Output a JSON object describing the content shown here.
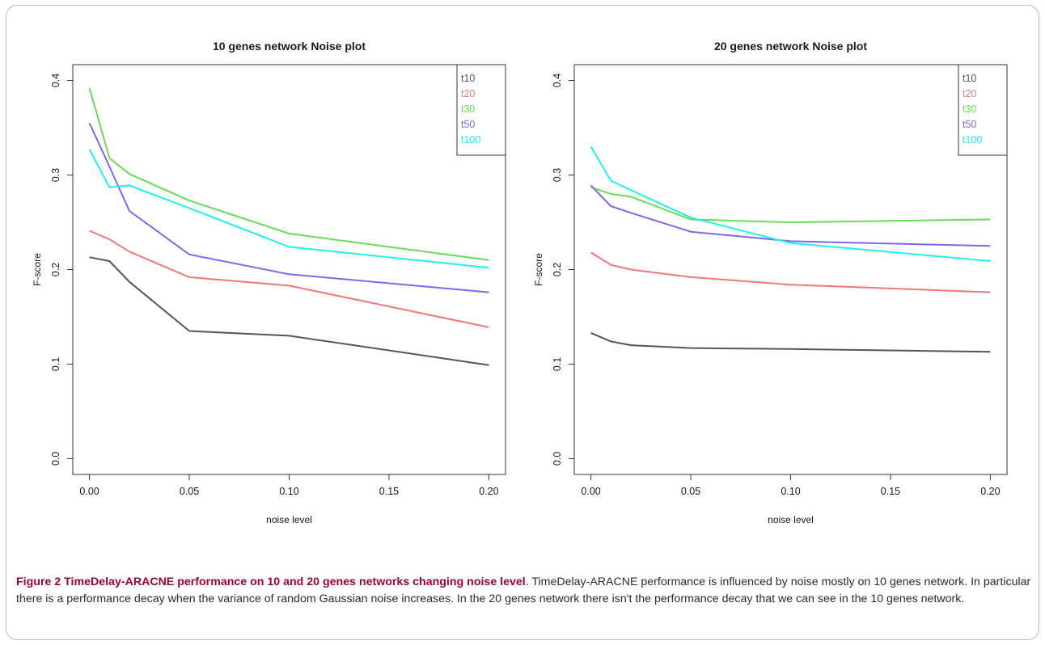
{
  "caption": {
    "label": "Figure 2",
    "title": "TimeDelay-ARACNE performance on 10 and 20 genes networks changing noise level",
    "text": ". TimeDelay-ARACNE performance is influenced by noise mostly on 10 genes network. In particular there is a performance decay when the variance of random Gaussian noise increases. In the 20 genes network there isn't the performance decay that we can see in the 10 genes network."
  },
  "chart_data": [
    {
      "type": "line",
      "title": "10 genes network Noise plot",
      "xlabel": "noise level",
      "ylabel": "F-score",
      "xlim": [
        0,
        0.2
      ],
      "ylim": [
        0,
        0.4
      ],
      "x_ticks": [
        "0.00",
        "0.05",
        "0.10",
        "0.15",
        "0.20"
      ],
      "y_ticks": [
        "0.0",
        "0.1",
        "0.2",
        "0.3",
        "0.4"
      ],
      "legend_position": "top-right",
      "x": [
        0,
        0.01,
        0.02,
        0.05,
        0.1,
        0.2
      ],
      "series": [
        {
          "name": "t10",
          "color": "#555555",
          "values": [
            0.213,
            0.209,
            0.187,
            0.135,
            0.13,
            0.099
          ]
        },
        {
          "name": "t20",
          "color": "#f27777",
          "values": [
            0.241,
            0.232,
            0.219,
            0.192,
            0.183,
            0.139
          ]
        },
        {
          "name": "t30",
          "color": "#66dd55",
          "values": [
            0.392,
            0.318,
            0.301,
            0.273,
            0.238,
            0.21
          ]
        },
        {
          "name": "t50",
          "color": "#7b68ee",
          "values": [
            0.355,
            0.309,
            0.262,
            0.216,
            0.195,
            0.176
          ]
        },
        {
          "name": "t100",
          "color": "#22eeee",
          "values": [
            0.327,
            0.287,
            0.289,
            0.265,
            0.224,
            0.202
          ]
        }
      ]
    },
    {
      "type": "line",
      "title": "20 genes network Noise plot",
      "xlabel": "noise level",
      "ylabel": "F-score",
      "xlim": [
        0,
        0.2
      ],
      "ylim": [
        0,
        0.4
      ],
      "x_ticks": [
        "0.00",
        "0.05",
        "0.10",
        "0.15",
        "0.20"
      ],
      "y_ticks": [
        "0.0",
        "0.1",
        "0.2",
        "0.3",
        "0.4"
      ],
      "legend_position": "top-right",
      "x": [
        0,
        0.01,
        0.02,
        0.05,
        0.1,
        0.2
      ],
      "series": [
        {
          "name": "t10",
          "color": "#555555",
          "values": [
            0.133,
            0.124,
            0.12,
            0.117,
            0.116,
            0.113
          ]
        },
        {
          "name": "t20",
          "color": "#f27777",
          "values": [
            0.218,
            0.205,
            0.2,
            0.192,
            0.184,
            0.176
          ]
        },
        {
          "name": "t30",
          "color": "#66dd55",
          "values": [
            0.287,
            0.28,
            0.277,
            0.253,
            0.25,
            0.253
          ]
        },
        {
          "name": "t50",
          "color": "#7b68ee",
          "values": [
            0.289,
            0.267,
            0.26,
            0.24,
            0.23,
            0.225
          ]
        },
        {
          "name": "t100",
          "color": "#22eeee",
          "values": [
            0.33,
            0.294,
            0.284,
            0.255,
            0.228,
            0.209
          ]
        }
      ]
    }
  ]
}
